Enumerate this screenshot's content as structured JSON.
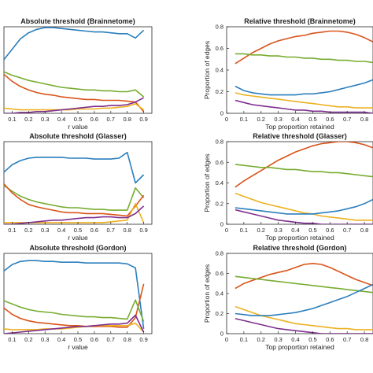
{
  "colors": {
    "blue": "#2b7fbd",
    "orange": "#d9541a",
    "green": "#77ac30",
    "yellow": "#edb120",
    "purple": "#7e2f8e"
  },
  "chart_data": [
    {
      "type": "line",
      "title": "Absolute threshold (Brainnetome)",
      "xlabel": "r value",
      "ylabel": "",
      "xlim": [
        0.05,
        0.95
      ],
      "ylim": [
        0,
        1
      ],
      "xticks": [
        "0.1",
        "0.2",
        "0.3",
        "0.4",
        "0.5",
        "0.6",
        "0.7",
        "0.8",
        "0.9"
      ],
      "yticks": [],
      "x": [
        0.05,
        0.1,
        0.15,
        0.2,
        0.25,
        0.3,
        0.35,
        0.4,
        0.45,
        0.5,
        0.55,
        0.6,
        0.65,
        0.7,
        0.75,
        0.8,
        0.85,
        0.9
      ],
      "series": [
        {
          "color": "blue",
          "values": [
            0.62,
            0.74,
            0.86,
            0.93,
            0.97,
            0.99,
            0.99,
            0.98,
            0.97,
            0.96,
            0.95,
            0.94,
            0.94,
            0.93,
            0.92,
            0.92,
            0.87,
            0.96
          ]
        },
        {
          "color": "orange",
          "values": [
            0.45,
            0.37,
            0.31,
            0.27,
            0.24,
            0.22,
            0.21,
            0.19,
            0.18,
            0.17,
            0.16,
            0.16,
            0.15,
            0.15,
            0.15,
            0.14,
            0.13,
            0.02
          ]
        },
        {
          "color": "green",
          "values": [
            0.48,
            0.44,
            0.41,
            0.38,
            0.36,
            0.34,
            0.32,
            0.3,
            0.29,
            0.28,
            0.27,
            0.27,
            0.26,
            0.26,
            0.25,
            0.25,
            0.27,
            0.19
          ]
        },
        {
          "color": "yellow",
          "values": [
            0.06,
            0.05,
            0.04,
            0.04,
            0.04,
            0.04,
            0.04,
            0.04,
            0.04,
            0.05,
            0.05,
            0.05,
            0.06,
            0.06,
            0.07,
            0.08,
            0.11,
            0.04
          ]
        },
        {
          "color": "purple",
          "values": [
            0.0,
            0.0,
            0.01,
            0.01,
            0.02,
            0.02,
            0.03,
            0.04,
            0.05,
            0.06,
            0.07,
            0.08,
            0.08,
            0.09,
            0.09,
            0.1,
            0.13,
            0.18
          ]
        }
      ]
    },
    {
      "type": "line",
      "title": "Relative threshold (Brainnetome)",
      "xlabel": "Top proportion retained",
      "ylabel": "Proportion of edges",
      "xlim": [
        0,
        0.85
      ],
      "ylim": [
        0,
        0.8
      ],
      "xticks": [
        "0",
        "0.1",
        "0.2",
        "0.3",
        "0.4",
        "0.5",
        "0.6",
        "0.7",
        "0.8"
      ],
      "yticks": [
        "0",
        "0.2",
        "0.4",
        "0.6",
        "0.8"
      ],
      "x": [
        0.05,
        0.1,
        0.15,
        0.2,
        0.25,
        0.3,
        0.35,
        0.4,
        0.45,
        0.5,
        0.55,
        0.6,
        0.65,
        0.7,
        0.75,
        0.8,
        0.85
      ],
      "series": [
        {
          "color": "orange",
          "values": [
            0.46,
            0.51,
            0.56,
            0.6,
            0.64,
            0.67,
            0.69,
            0.71,
            0.72,
            0.74,
            0.75,
            0.76,
            0.76,
            0.75,
            0.73,
            0.7,
            0.66
          ]
        },
        {
          "color": "green",
          "values": [
            0.55,
            0.55,
            0.54,
            0.54,
            0.53,
            0.53,
            0.52,
            0.52,
            0.51,
            0.51,
            0.5,
            0.5,
            0.49,
            0.49,
            0.48,
            0.48,
            0.47
          ]
        },
        {
          "color": "blue",
          "values": [
            0.25,
            0.21,
            0.19,
            0.18,
            0.17,
            0.17,
            0.17,
            0.17,
            0.18,
            0.18,
            0.19,
            0.2,
            0.22,
            0.24,
            0.26,
            0.28,
            0.31
          ]
        },
        {
          "color": "yellow",
          "values": [
            0.19,
            0.17,
            0.16,
            0.15,
            0.14,
            0.13,
            0.12,
            0.11,
            0.1,
            0.09,
            0.08,
            0.07,
            0.06,
            0.06,
            0.05,
            0.05,
            0.05
          ]
        },
        {
          "color": "purple",
          "values": [
            0.12,
            0.1,
            0.08,
            0.07,
            0.06,
            0.05,
            0.04,
            0.03,
            0.03,
            0.02,
            0.02,
            0.01,
            0.01,
            0.01,
            0.01,
            0.01,
            0.0
          ]
        }
      ]
    },
    {
      "type": "line",
      "title": "Absolute threshold (Glasser)",
      "xlabel": "r value",
      "ylabel": "",
      "xlim": [
        0.05,
        0.95
      ],
      "ylim": [
        0,
        1
      ],
      "xticks": [
        "0.1",
        "0.2",
        "0.3",
        "0.4",
        "0.5",
        "0.6",
        "0.7",
        "0.8",
        "0.9"
      ],
      "yticks": [],
      "x": [
        0.05,
        0.1,
        0.15,
        0.2,
        0.25,
        0.3,
        0.35,
        0.4,
        0.45,
        0.5,
        0.55,
        0.6,
        0.65,
        0.7,
        0.75,
        0.8,
        0.85,
        0.9
      ],
      "series": [
        {
          "color": "blue",
          "values": [
            0.63,
            0.72,
            0.77,
            0.8,
            0.81,
            0.81,
            0.81,
            0.81,
            0.8,
            0.8,
            0.8,
            0.79,
            0.79,
            0.79,
            0.8,
            0.87,
            0.5,
            0.6
          ]
        },
        {
          "color": "green",
          "values": [
            0.47,
            0.4,
            0.34,
            0.3,
            0.27,
            0.25,
            0.23,
            0.21,
            0.2,
            0.2,
            0.19,
            0.18,
            0.18,
            0.17,
            0.17,
            0.17,
            0.44,
            0.32
          ]
        },
        {
          "color": "orange",
          "values": [
            0.49,
            0.38,
            0.3,
            0.24,
            0.21,
            0.19,
            0.17,
            0.15,
            0.14,
            0.14,
            0.13,
            0.13,
            0.13,
            0.12,
            0.11,
            0.1,
            0.22,
            0.35
          ]
        },
        {
          "color": "yellow",
          "values": [
            0.02,
            0.02,
            0.02,
            0.02,
            0.02,
            0.02,
            0.02,
            0.02,
            0.02,
            0.02,
            0.02,
            0.02,
            0.02,
            0.03,
            0.04,
            0.05,
            0.25,
            0.02
          ]
        },
        {
          "color": "purple",
          "values": [
            0.0,
            0.0,
            0.01,
            0.02,
            0.03,
            0.04,
            0.05,
            0.05,
            0.06,
            0.07,
            0.08,
            0.08,
            0.09,
            0.09,
            0.08,
            0.08,
            0.13,
            0.22
          ]
        }
      ]
    },
    {
      "type": "line",
      "title": "Relative threshold (Glasser)",
      "xlabel": "Top proportion retained",
      "ylabel": "Proportion of edges",
      "xlim": [
        0,
        0.85
      ],
      "ylim": [
        0,
        0.8
      ],
      "xticks": [
        "0",
        "0.1",
        "0.2",
        "0.3",
        "0.4",
        "0.5",
        "0.6",
        "0.7",
        "0.8"
      ],
      "yticks": [
        "0",
        "0.2",
        "0.4",
        "0.6",
        "0.8"
      ],
      "x": [
        0.05,
        0.1,
        0.15,
        0.2,
        0.25,
        0.3,
        0.35,
        0.4,
        0.45,
        0.5,
        0.55,
        0.6,
        0.65,
        0.7,
        0.75,
        0.8,
        0.85
      ],
      "series": [
        {
          "color": "orange",
          "values": [
            0.36,
            0.42,
            0.47,
            0.52,
            0.57,
            0.62,
            0.66,
            0.7,
            0.73,
            0.76,
            0.78,
            0.79,
            0.8,
            0.8,
            0.79,
            0.77,
            0.74
          ]
        },
        {
          "color": "green",
          "values": [
            0.58,
            0.57,
            0.56,
            0.55,
            0.55,
            0.54,
            0.53,
            0.53,
            0.52,
            0.51,
            0.51,
            0.5,
            0.5,
            0.49,
            0.48,
            0.47,
            0.46
          ]
        },
        {
          "color": "yellow",
          "values": [
            0.3,
            0.27,
            0.24,
            0.21,
            0.19,
            0.17,
            0.15,
            0.13,
            0.11,
            0.1,
            0.08,
            0.07,
            0.06,
            0.05,
            0.04,
            0.04,
            0.04
          ]
        },
        {
          "color": "blue",
          "values": [
            0.16,
            0.15,
            0.14,
            0.13,
            0.12,
            0.11,
            0.1,
            0.1,
            0.1,
            0.1,
            0.11,
            0.12,
            0.13,
            0.15,
            0.17,
            0.2,
            0.24
          ]
        },
        {
          "color": "purple",
          "values": [
            0.14,
            0.12,
            0.1,
            0.08,
            0.06,
            0.04,
            0.03,
            0.02,
            0.01,
            0.01,
            0.0,
            0.0,
            0.0,
            0.0,
            0.0,
            0.0,
            0.0
          ]
        }
      ]
    },
    {
      "type": "line",
      "title": "Absolute threshold (Gordon)",
      "xlabel": "r value",
      "ylabel": "",
      "xlim": [
        0.05,
        0.95
      ],
      "ylim": [
        0,
        1
      ],
      "xticks": [
        "0.1",
        "0.2",
        "0.3",
        "0.4",
        "0.5",
        "0.6",
        "0.7",
        "0.8",
        "0.9"
      ],
      "yticks": [],
      "x": [
        0.05,
        0.1,
        0.15,
        0.2,
        0.25,
        0.3,
        0.35,
        0.4,
        0.45,
        0.5,
        0.55,
        0.6,
        0.65,
        0.7,
        0.75,
        0.8,
        0.85,
        0.9
      ],
      "series": [
        {
          "color": "blue",
          "values": [
            0.78,
            0.86,
            0.9,
            0.91,
            0.91,
            0.9,
            0.9,
            0.89,
            0.89,
            0.89,
            0.88,
            0.88,
            0.88,
            0.88,
            0.88,
            0.87,
            0.82,
            0.06
          ]
        },
        {
          "color": "orange",
          "values": [
            0.32,
            0.24,
            0.19,
            0.16,
            0.14,
            0.13,
            0.12,
            0.11,
            0.1,
            0.1,
            0.09,
            0.09,
            0.09,
            0.09,
            0.08,
            0.08,
            0.2,
            0.62
          ]
        },
        {
          "color": "green",
          "values": [
            0.41,
            0.37,
            0.33,
            0.3,
            0.28,
            0.27,
            0.26,
            0.24,
            0.23,
            0.22,
            0.21,
            0.21,
            0.2,
            0.2,
            0.19,
            0.18,
            0.42,
            0.15
          ]
        },
        {
          "color": "yellow",
          "values": [
            0.06,
            0.05,
            0.05,
            0.05,
            0.05,
            0.06,
            0.06,
            0.06,
            0.07,
            0.08,
            0.09,
            0.1,
            0.1,
            0.1,
            0.1,
            0.1,
            0.13,
            0.02
          ]
        },
        {
          "color": "purple",
          "values": [
            0.0,
            0.01,
            0.02,
            0.03,
            0.04,
            0.05,
            0.06,
            0.07,
            0.08,
            0.09,
            0.09,
            0.1,
            0.11,
            0.12,
            0.12,
            0.13,
            0.23,
            0.02
          ]
        }
      ]
    },
    {
      "type": "line",
      "title": "Relative threshold (Gordon)",
      "xlabel": "Top proportion retained",
      "ylabel": "Proportion of edges",
      "xlim": [
        0,
        0.85
      ],
      "ylim": [
        0,
        0.8
      ],
      "xticks": [
        "0",
        "0.1",
        "0.2",
        "0.3",
        "0.4",
        "0.5",
        "0.6",
        "0.7",
        "0.8"
      ],
      "yticks": [
        "0",
        "0.2",
        "0.4",
        "0.6",
        "0.8"
      ],
      "x": [
        0.05,
        0.1,
        0.15,
        0.2,
        0.25,
        0.3,
        0.35,
        0.4,
        0.45,
        0.5,
        0.55,
        0.6,
        0.65,
        0.7,
        0.75,
        0.8,
        0.85
      ],
      "series": [
        {
          "color": "orange",
          "values": [
            0.45,
            0.5,
            0.53,
            0.56,
            0.59,
            0.61,
            0.63,
            0.66,
            0.69,
            0.7,
            0.69,
            0.66,
            0.62,
            0.58,
            0.54,
            0.51,
            0.48
          ]
        },
        {
          "color": "green",
          "values": [
            0.57,
            0.56,
            0.55,
            0.54,
            0.53,
            0.52,
            0.51,
            0.5,
            0.49,
            0.48,
            0.47,
            0.46,
            0.45,
            0.44,
            0.43,
            0.42,
            0.41
          ]
        },
        {
          "color": "yellow",
          "values": [
            0.27,
            0.24,
            0.21,
            0.18,
            0.16,
            0.14,
            0.12,
            0.1,
            0.09,
            0.08,
            0.07,
            0.06,
            0.05,
            0.05,
            0.04,
            0.04,
            0.04
          ]
        },
        {
          "color": "blue",
          "values": [
            0.2,
            0.19,
            0.18,
            0.18,
            0.18,
            0.19,
            0.2,
            0.21,
            0.23,
            0.25,
            0.28,
            0.31,
            0.34,
            0.37,
            0.41,
            0.45,
            0.49
          ]
        },
        {
          "color": "purple",
          "values": [
            0.15,
            0.13,
            0.11,
            0.09,
            0.07,
            0.05,
            0.04,
            0.03,
            0.02,
            0.01,
            0.0,
            0.0,
            0.0,
            0.0,
            0.0,
            0.0,
            0.0
          ]
        }
      ]
    }
  ]
}
